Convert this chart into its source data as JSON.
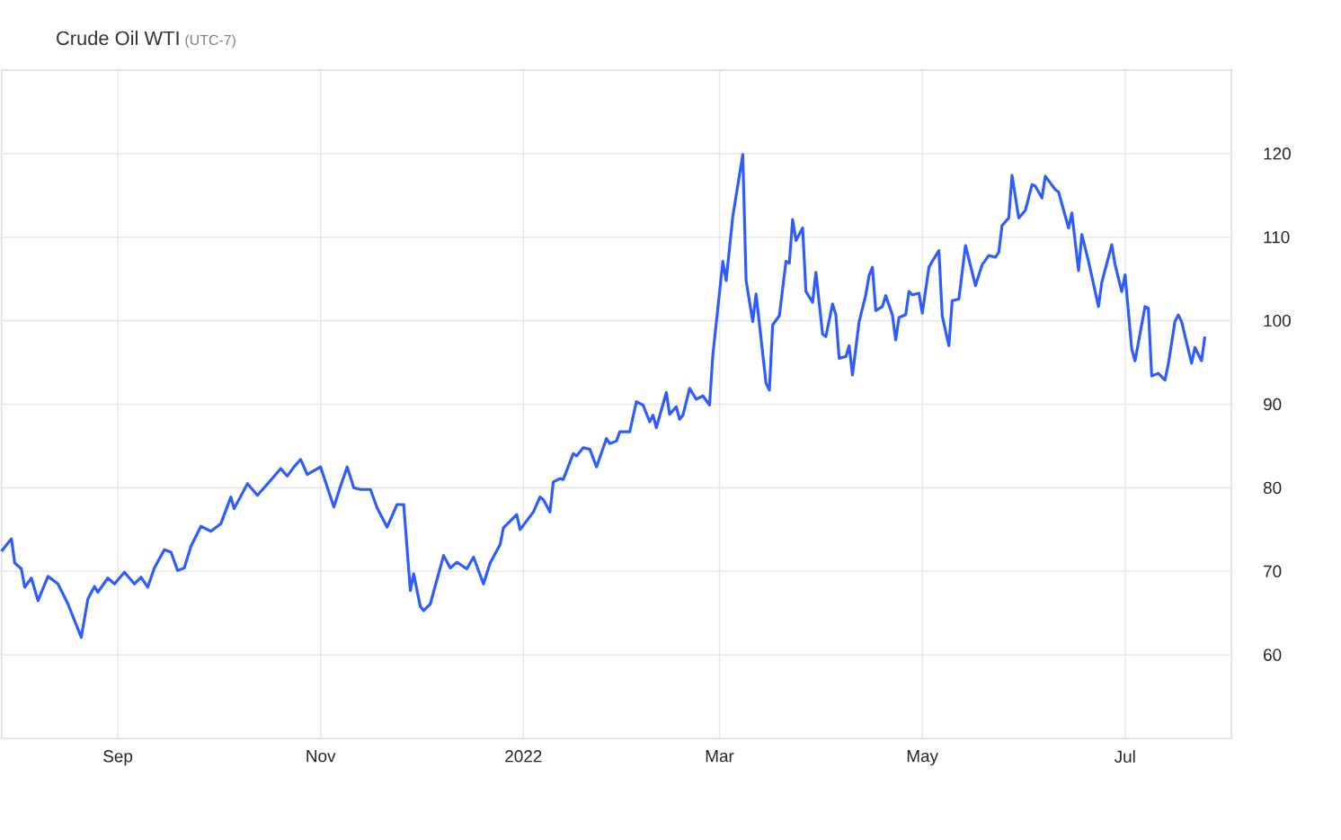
{
  "chart_data": {
    "type": "line",
    "title": "Crude Oil WTI",
    "subtitle": "(UTC-7)",
    "x": [
      "2021-07-28",
      "2021-07-31",
      "2021-08-01",
      "2021-08-03",
      "2021-08-04",
      "2021-08-06",
      "2021-08-08",
      "2021-08-11",
      "2021-08-14",
      "2021-08-17",
      "2021-08-21",
      "2021-08-23",
      "2021-08-25",
      "2021-08-26",
      "2021-08-29",
      "2021-08-31",
      "2021-09-03",
      "2021-09-06",
      "2021-09-08",
      "2021-09-10",
      "2021-09-12",
      "2021-09-15",
      "2021-09-17",
      "2021-09-19",
      "2021-09-21",
      "2021-09-23",
      "2021-09-26",
      "2021-09-29",
      "2021-10-02",
      "2021-10-05",
      "2021-10-06",
      "2021-10-10",
      "2021-10-13",
      "2021-10-17",
      "2021-10-20",
      "2021-10-22",
      "2021-10-24",
      "2021-10-26",
      "2021-10-28",
      "2021-11-01",
      "2021-11-05",
      "2021-11-07",
      "2021-11-09",
      "2021-11-11",
      "2021-11-13",
      "2021-11-16",
      "2021-11-18",
      "2021-11-21",
      "2021-11-24",
      "2021-11-26",
      "2021-11-28",
      "2021-11-29",
      "2021-12-01",
      "2021-12-02",
      "2021-12-04",
      "2021-12-08",
      "2021-12-10",
      "2021-12-12",
      "2021-12-15",
      "2021-12-17",
      "2021-12-20",
      "2021-12-22",
      "2021-12-25",
      "2021-12-26",
      "2021-12-29",
      "2021-12-30",
      "2021-12-31",
      "2022-01-04",
      "2022-01-06",
      "2022-01-07",
      "2022-01-09",
      "2022-01-10",
      "2022-01-12",
      "2022-01-13",
      "2022-01-16",
      "2022-01-17",
      "2022-01-19",
      "2022-01-21",
      "2022-01-23",
      "2022-01-26",
      "2022-01-27",
      "2022-01-29",
      "2022-01-30",
      "2022-02-02",
      "2022-02-04",
      "2022-02-06",
      "2022-02-08",
      "2022-02-09",
      "2022-02-10",
      "2022-02-13",
      "2022-02-14",
      "2022-02-16",
      "2022-02-17",
      "2022-02-18",
      "2022-02-20",
      "2022-02-22",
      "2022-02-24",
      "2022-02-26",
      "2022-02-27",
      "2022-03-02",
      "2022-03-03",
      "2022-03-05",
      "2022-03-08",
      "2022-03-09",
      "2022-03-11",
      "2022-03-12",
      "2022-03-15",
      "2022-03-16",
      "2022-03-17",
      "2022-03-19",
      "2022-03-21",
      "2022-03-22",
      "2022-03-23",
      "2022-03-24",
      "2022-03-26",
      "2022-03-27",
      "2022-03-29",
      "2022-03-30",
      "2022-04-01",
      "2022-04-02",
      "2022-04-04",
      "2022-04-05",
      "2022-04-06",
      "2022-04-08",
      "2022-04-09",
      "2022-04-10",
      "2022-04-12",
      "2022-04-14",
      "2022-04-15",
      "2022-04-16",
      "2022-04-17",
      "2022-04-19",
      "2022-04-20",
      "2022-04-22",
      "2022-04-23",
      "2022-04-24",
      "2022-04-26",
      "2022-04-27",
      "2022-04-28",
      "2022-04-30",
      "2022-05-01",
      "2022-05-03",
      "2022-05-04",
      "2022-05-06",
      "2022-05-07",
      "2022-05-09",
      "2022-05-10",
      "2022-05-12",
      "2022-05-14",
      "2022-05-17",
      "2022-05-19",
      "2022-05-21",
      "2022-05-23",
      "2022-05-24",
      "2022-05-25",
      "2022-05-27",
      "2022-05-28",
      "2022-05-30",
      "2022-06-01",
      "2022-06-03",
      "2022-06-04",
      "2022-06-06",
      "2022-06-07",
      "2022-06-10",
      "2022-06-11",
      "2022-06-14",
      "2022-06-15",
      "2022-06-17",
      "2022-06-18",
      "2022-06-20",
      "2022-06-23",
      "2022-06-24",
      "2022-06-27",
      "2022-06-28",
      "2022-06-30",
      "2022-07-01",
      "2022-07-03",
      "2022-07-04",
      "2022-07-07",
      "2022-07-08",
      "2022-07-09",
      "2022-07-11",
      "2022-07-13",
      "2022-07-14",
      "2022-07-16",
      "2022-07-17",
      "2022-07-18",
      "2022-07-21",
      "2022-07-22",
      "2022-07-24",
      "2022-07-25"
    ],
    "series": [
      {
        "color": "#2e5dff",
        "values": [
          72.4,
          73.9,
          71.0,
          70.3,
          68.1,
          69.2,
          66.5,
          69.4,
          68.5,
          66.1,
          62.1,
          66.7,
          68.2,
          67.5,
          69.2,
          68.5,
          69.9,
          68.5,
          69.3,
          68.1,
          70.4,
          72.6,
          72.3,
          70.1,
          70.4,
          73.0,
          75.4,
          74.8,
          75.7,
          78.9,
          77.5,
          80.5,
          79.1,
          80.9,
          82.3,
          81.4,
          82.5,
          83.4,
          81.6,
          82.5,
          77.7,
          80.2,
          82.5,
          80.0,
          79.8,
          79.8,
          77.6,
          75.3,
          78.0,
          78.0,
          67.7,
          69.7,
          65.8,
          65.3,
          66.1,
          71.9,
          70.4,
          71.1,
          70.3,
          71.7,
          68.5,
          71.0,
          73.2,
          75.2,
          76.4,
          76.8,
          75.0,
          77.1,
          78.9,
          78.6,
          77.1,
          80.7,
          81.1,
          81.0,
          84.1,
          83.8,
          84.8,
          84.6,
          82.5,
          85.9,
          85.3,
          85.6,
          86.7,
          86.7,
          90.3,
          89.9,
          87.9,
          88.7,
          87.2,
          91.4,
          88.8,
          89.7,
          88.2,
          88.7,
          91.9,
          90.6,
          91.0,
          89.9,
          95.9,
          107.1,
          104.8,
          112.5,
          119.9,
          104.8,
          99.9,
          103.2,
          92.5,
          91.7,
          99.5,
          100.6,
          107.1,
          106.9,
          112.1,
          109.6,
          111.1,
          103.5,
          102.2,
          105.8,
          98.4,
          98.1,
          102.0,
          100.7,
          95.5,
          95.7,
          97.0,
          93.5,
          99.9,
          103.1,
          105.4,
          106.4,
          101.2,
          101.7,
          103.0,
          100.7,
          97.7,
          100.4,
          100.7,
          103.5,
          103.1,
          103.3,
          100.9,
          106.4,
          107.1,
          108.4,
          100.6,
          97.0,
          102.4,
          102.6,
          109.0,
          104.2,
          106.7,
          107.8,
          107.6,
          108.2,
          111.4,
          112.3,
          117.4,
          112.3,
          113.2,
          116.3,
          116.1,
          114.7,
          117.3,
          115.7,
          115.4,
          111.1,
          112.9,
          106.0,
          110.3,
          107.1,
          101.7,
          104.6,
          109.1,
          106.7,
          103.5,
          105.5,
          96.6,
          95.2,
          101.7,
          101.5,
          93.4,
          93.7,
          92.9,
          94.8,
          99.9,
          100.7,
          99.9,
          94.9,
          96.8,
          95.2,
          98.1
        ]
      }
    ],
    "xlim": [
      "2021-07-28",
      "2022-08-02"
    ],
    "xticks": [
      {
        "value": "2021-09-01",
        "label": "Sep"
      },
      {
        "value": "2021-11-01",
        "label": "Nov"
      },
      {
        "value": "2022-01-01",
        "label": "2022"
      },
      {
        "value": "2022-03-01",
        "label": "Mar"
      },
      {
        "value": "2022-05-01",
        "label": "May"
      },
      {
        "value": "2022-07-01",
        "label": "Jul"
      }
    ],
    "ylim": [
      50,
      130
    ],
    "yticks": [
      60,
      70,
      80,
      90,
      100,
      110,
      120
    ],
    "grid": true
  }
}
